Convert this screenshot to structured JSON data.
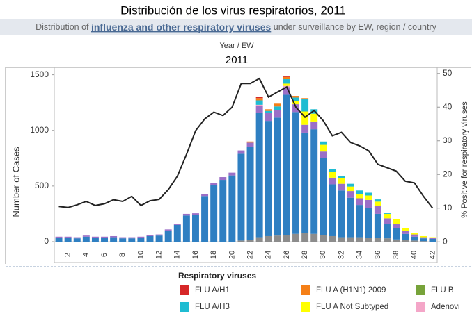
{
  "chart_data": {
    "type": "bar",
    "title": "Distribución de los virus respiratorios, 2011",
    "subtitle": {
      "before": "Distribution of ",
      "link": "influenza and other respiratory viruses",
      "after": " under surveillance by EW, region / country"
    },
    "header_label": "Year / EW",
    "header_year": "2011",
    "ylabel": "Number of Cases",
    "y2label": "% Positive for respiratory viruses",
    "categories": [
      null,
      2,
      null,
      4,
      null,
      6,
      null,
      8,
      null,
      10,
      null,
      12,
      null,
      14,
      null,
      16,
      null,
      18,
      null,
      20,
      null,
      22,
      null,
      24,
      null,
      26,
      null,
      28,
      null,
      30,
      null,
      32,
      null,
      34,
      null,
      36,
      null,
      38,
      null,
      40,
      null,
      42
    ],
    "ylim": [
      -50,
      1560
    ],
    "yticks": [
      0,
      500,
      1000,
      1500
    ],
    "y2lim": [
      -1.6,
      51.6
    ],
    "y2ticks": [
      0,
      10,
      20,
      30,
      40,
      50
    ],
    "legend_title": "Respiratory viruses",
    "series": [
      {
        "color": "#8c8c8c",
        "values": [
          0,
          0,
          0,
          0,
          0,
          0,
          0,
          0,
          0,
          0,
          0,
          0,
          0,
          0,
          0,
          0,
          0,
          0,
          0,
          0,
          10,
          15,
          40,
          50,
          55,
          60,
          70,
          80,
          70,
          60,
          50,
          40,
          40,
          40,
          35,
          35,
          30,
          20,
          15,
          10,
          5,
          0
        ]
      },
      {
        "color": "#2e7fc2",
        "values": [
          35,
          35,
          30,
          45,
          35,
          35,
          40,
          30,
          30,
          35,
          50,
          55,
          100,
          150,
          235,
          240,
          410,
          510,
          555,
          595,
          780,
          835,
          1120,
          1035,
          1060,
          1260,
          1095,
          900,
          940,
          690,
          465,
          420,
          355,
          290,
          270,
          215,
          130,
          100,
          55,
          35,
          25,
          25
        ]
      },
      {
        "color": "#9b6fc7",
        "values": [
          10,
          10,
          10,
          10,
          10,
          10,
          10,
          10,
          10,
          10,
          10,
          10,
          10,
          10,
          15,
          15,
          20,
          20,
          25,
          25,
          30,
          40,
          60,
          70,
          70,
          70,
          70,
          70,
          70,
          60,
          60,
          60,
          60,
          60,
          70,
          70,
          50,
          40,
          30,
          20,
          10,
          10
        ]
      },
      {
        "name": "Adenovi",
        "color": "#f4a6c8",
        "values": [
          0,
          0,
          0,
          0,
          0,
          0,
          0,
          0,
          0,
          0,
          0,
          0,
          0,
          0,
          0,
          0,
          0,
          0,
          0,
          0,
          0,
          0,
          10,
          0,
          0,
          10,
          0,
          0,
          0,
          0,
          0,
          0,
          0,
          0,
          0,
          0,
          0,
          0,
          0,
          0,
          0,
          0
        ]
      },
      {
        "name": "FLU A Not Subtyped",
        "color": "#ffff00",
        "values": [
          0,
          0,
          0,
          0,
          0,
          0,
          0,
          0,
          0,
          0,
          0,
          0,
          0,
          0,
          0,
          0,
          0,
          0,
          0,
          0,
          0,
          0,
          0,
          0,
          0,
          20,
          30,
          120,
          70,
          60,
          50,
          50,
          40,
          40,
          40,
          40,
          40,
          40,
          20,
          15,
          10,
          5
        ]
      },
      {
        "name": "FLU A/H3",
        "color": "#1fbcd2",
        "values": [
          0,
          0,
          0,
          0,
          0,
          0,
          0,
          0,
          0,
          0,
          0,
          0,
          0,
          0,
          0,
          0,
          0,
          0,
          0,
          0,
          0,
          0,
          40,
          20,
          30,
          40,
          30,
          110,
          40,
          30,
          25,
          20,
          25,
          30,
          25,
          20,
          10,
          0,
          0,
          0,
          0,
          0
        ]
      },
      {
        "name": "FLU A (H1N1) 2009",
        "color": "#f57f17",
        "values": [
          0,
          0,
          0,
          0,
          0,
          0,
          0,
          0,
          0,
          0,
          0,
          0,
          0,
          0,
          0,
          0,
          0,
          0,
          0,
          0,
          0,
          10,
          20,
          15,
          25,
          20,
          15,
          10,
          0,
          0,
          0,
          0,
          0,
          0,
          0,
          0,
          0,
          0,
          0,
          0,
          0,
          0
        ]
      },
      {
        "name": "FLU A/H1",
        "color": "#d62728",
        "values": [
          0,
          0,
          0,
          0,
          0,
          0,
          0,
          0,
          0,
          0,
          0,
          0,
          0,
          0,
          0,
          0,
          0,
          0,
          0,
          0,
          0,
          0,
          10,
          0,
          0,
          10,
          0,
          0,
          0,
          0,
          0,
          0,
          0,
          0,
          0,
          0,
          0,
          0,
          0,
          0,
          0,
          0
        ]
      },
      {
        "name": "FLU B",
        "color": "#77a33a",
        "values": [
          0,
          0,
          0,
          0,
          0,
          0,
          0,
          0,
          0,
          0,
          0,
          0,
          0,
          0,
          0,
          0,
          0,
          0,
          0,
          0,
          0,
          0,
          0,
          0,
          0,
          0,
          0,
          0,
          0,
          0,
          0,
          0,
          0,
          0,
          0,
          0,
          0,
          0,
          0,
          0,
          0,
          0
        ]
      },
      {
        "type": "line",
        "axis": "y2",
        "color": "#222222",
        "values": [
          10.5,
          10.2,
          11,
          12,
          10.8,
          11.3,
          12.5,
          12,
          13.5,
          10.8,
          12.2,
          12.6,
          15.5,
          19.5,
          26,
          33,
          36.5,
          38.5,
          37.5,
          40,
          47,
          47,
          48.5,
          43,
          44.5,
          46,
          40,
          37,
          39,
          36,
          31.5,
          32.5,
          29.5,
          28.5,
          27,
          23,
          22,
          21,
          18,
          17.5,
          13.5,
          10
        ]
      }
    ],
    "legend_order": [
      7,
      6,
      8,
      5,
      4,
      3
    ]
  }
}
